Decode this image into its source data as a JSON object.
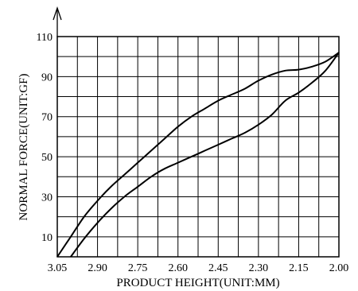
{
  "chart_data": {
    "type": "line",
    "title": "",
    "xlabel": "PRODUCT  HEIGHT(UNIT:MM)",
    "ylabel": "NORMAL  FORCE(UNIT:GF)",
    "x_reversed": true,
    "xlim": [
      2.0,
      3.05
    ],
    "ylim": [
      0,
      110
    ],
    "x_ticks": [
      3.05,
      2.9,
      2.75,
      2.6,
      2.45,
      2.3,
      2.15,
      2.0
    ],
    "x_tick_labels": [
      "3.05",
      "2.90",
      "2.75",
      "2.60",
      "2.45",
      "2.30",
      "2.15",
      "2.00"
    ],
    "y_ticks": [
      10,
      30,
      50,
      70,
      90,
      110
    ],
    "y_tick_labels": [
      "10",
      "30",
      "50",
      "70",
      "90",
      "110"
    ],
    "grid": true,
    "series": [
      {
        "values_x": [
          3.05,
          3.0,
          2.95,
          2.9,
          2.85,
          2.8,
          2.75,
          2.7,
          2.65,
          2.6,
          2.55,
          2.5,
          2.45,
          2.4,
          2.35,
          2.3,
          2.25,
          2.2,
          2.15,
          2.1,
          2.05,
          2.0
        ],
        "values_y": [
          0,
          10,
          20,
          28,
          35,
          41,
          47,
          53,
          59,
          65,
          70,
          74,
          78,
          81,
          84,
          88,
          91,
          93,
          93.5,
          95,
          97.5,
          102
        ]
      },
      {
        "values_x": [
          3.0,
          2.95,
          2.9,
          2.85,
          2.8,
          2.75,
          2.7,
          2.65,
          2.6,
          2.55,
          2.5,
          2.45,
          2.4,
          2.35,
          2.3,
          2.25,
          2.2,
          2.15,
          2.1,
          2.05,
          2.0
        ],
        "values_y": [
          0,
          9,
          17,
          24,
          30,
          35,
          40,
          44,
          47,
          50,
          53,
          56,
          59,
          62,
          66,
          71,
          78,
          82,
          87,
          93,
          102
        ]
      }
    ]
  }
}
